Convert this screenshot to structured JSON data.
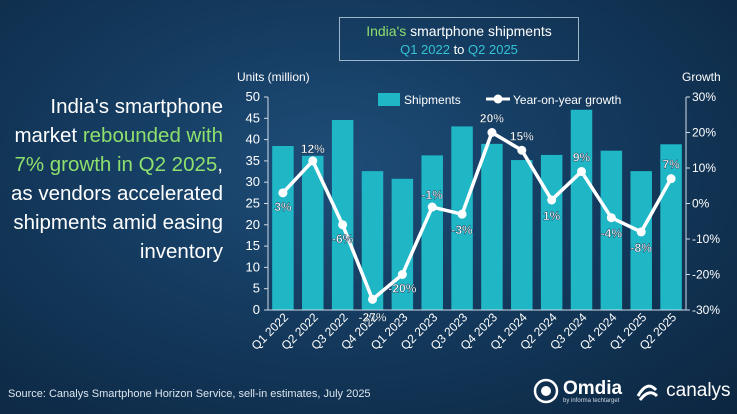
{
  "title_box": {
    "line1_a": "India's",
    "line1_b": " smartphone shipments",
    "line2_a": "Q1 2022",
    "line2_b": " to ",
    "line2_c": "Q2 2025"
  },
  "headline": {
    "part1": "India's smartphone market ",
    "part2": "rebounded with 7% growth in Q2 2025",
    "part3": ", as vendors accelerated shipments amid easing inventory"
  },
  "source": "Source: Canalys Smartphone Horizon Service, sell-in estimates, July 2025",
  "logos": {
    "omdia": "Omdia",
    "omdia_sub": "by informa techtarget",
    "canalys": "canalys"
  },
  "colors": {
    "bar": "#1fb6c6",
    "line": "#ffffff",
    "accent_green": "#8ee06d",
    "accent_cyan": "#34c3d6"
  },
  "chart_data": {
    "type": "bar",
    "categories": [
      "Q1 2022",
      "Q2 2022",
      "Q3 2022",
      "Q4 2022",
      "Q1 2023",
      "Q2 2023",
      "Q3 2023",
      "Q4 2023",
      "Q1 2024",
      "Q2 2024",
      "Q3 2024",
      "Q4 2024",
      "Q1 2025",
      "Q2 2025"
    ],
    "series": [
      {
        "name": "Shipments",
        "type": "bar",
        "axis": "left",
        "values": [
          38.5,
          36.2,
          44.6,
          32.6,
          30.8,
          36.3,
          43.1,
          39.0,
          35.2,
          36.4,
          47.0,
          37.4,
          32.6,
          38.9
        ]
      },
      {
        "name": "Year-on-year growth",
        "type": "line",
        "axis": "right",
        "values": [
          3,
          12,
          -6,
          -27,
          -20,
          -1,
          -3,
          20,
          15,
          1,
          9,
          -4,
          -8,
          7
        ],
        "labels": [
          "3%",
          "12%",
          "-6%",
          "-27%",
          "-20%",
          "-1%",
          "-3%",
          "20%",
          "15%",
          "1%",
          "9%",
          "-4%",
          "-8%",
          "7%"
        ]
      }
    ],
    "ylabel_left": "Units (million)",
    "ylabel_right": "Growth",
    "ylim_left": [
      0,
      50
    ],
    "ylim_right": [
      -30,
      30
    ],
    "yticks_left": [
      "0",
      "5",
      "10",
      "15",
      "20",
      "25",
      "30",
      "35",
      "40",
      "45",
      "50"
    ],
    "yticks_right": [
      "-30%",
      "-20%",
      "-10%",
      "0%",
      "10%",
      "20%",
      "30%"
    ],
    "grid": false,
    "legend_position": "top"
  }
}
